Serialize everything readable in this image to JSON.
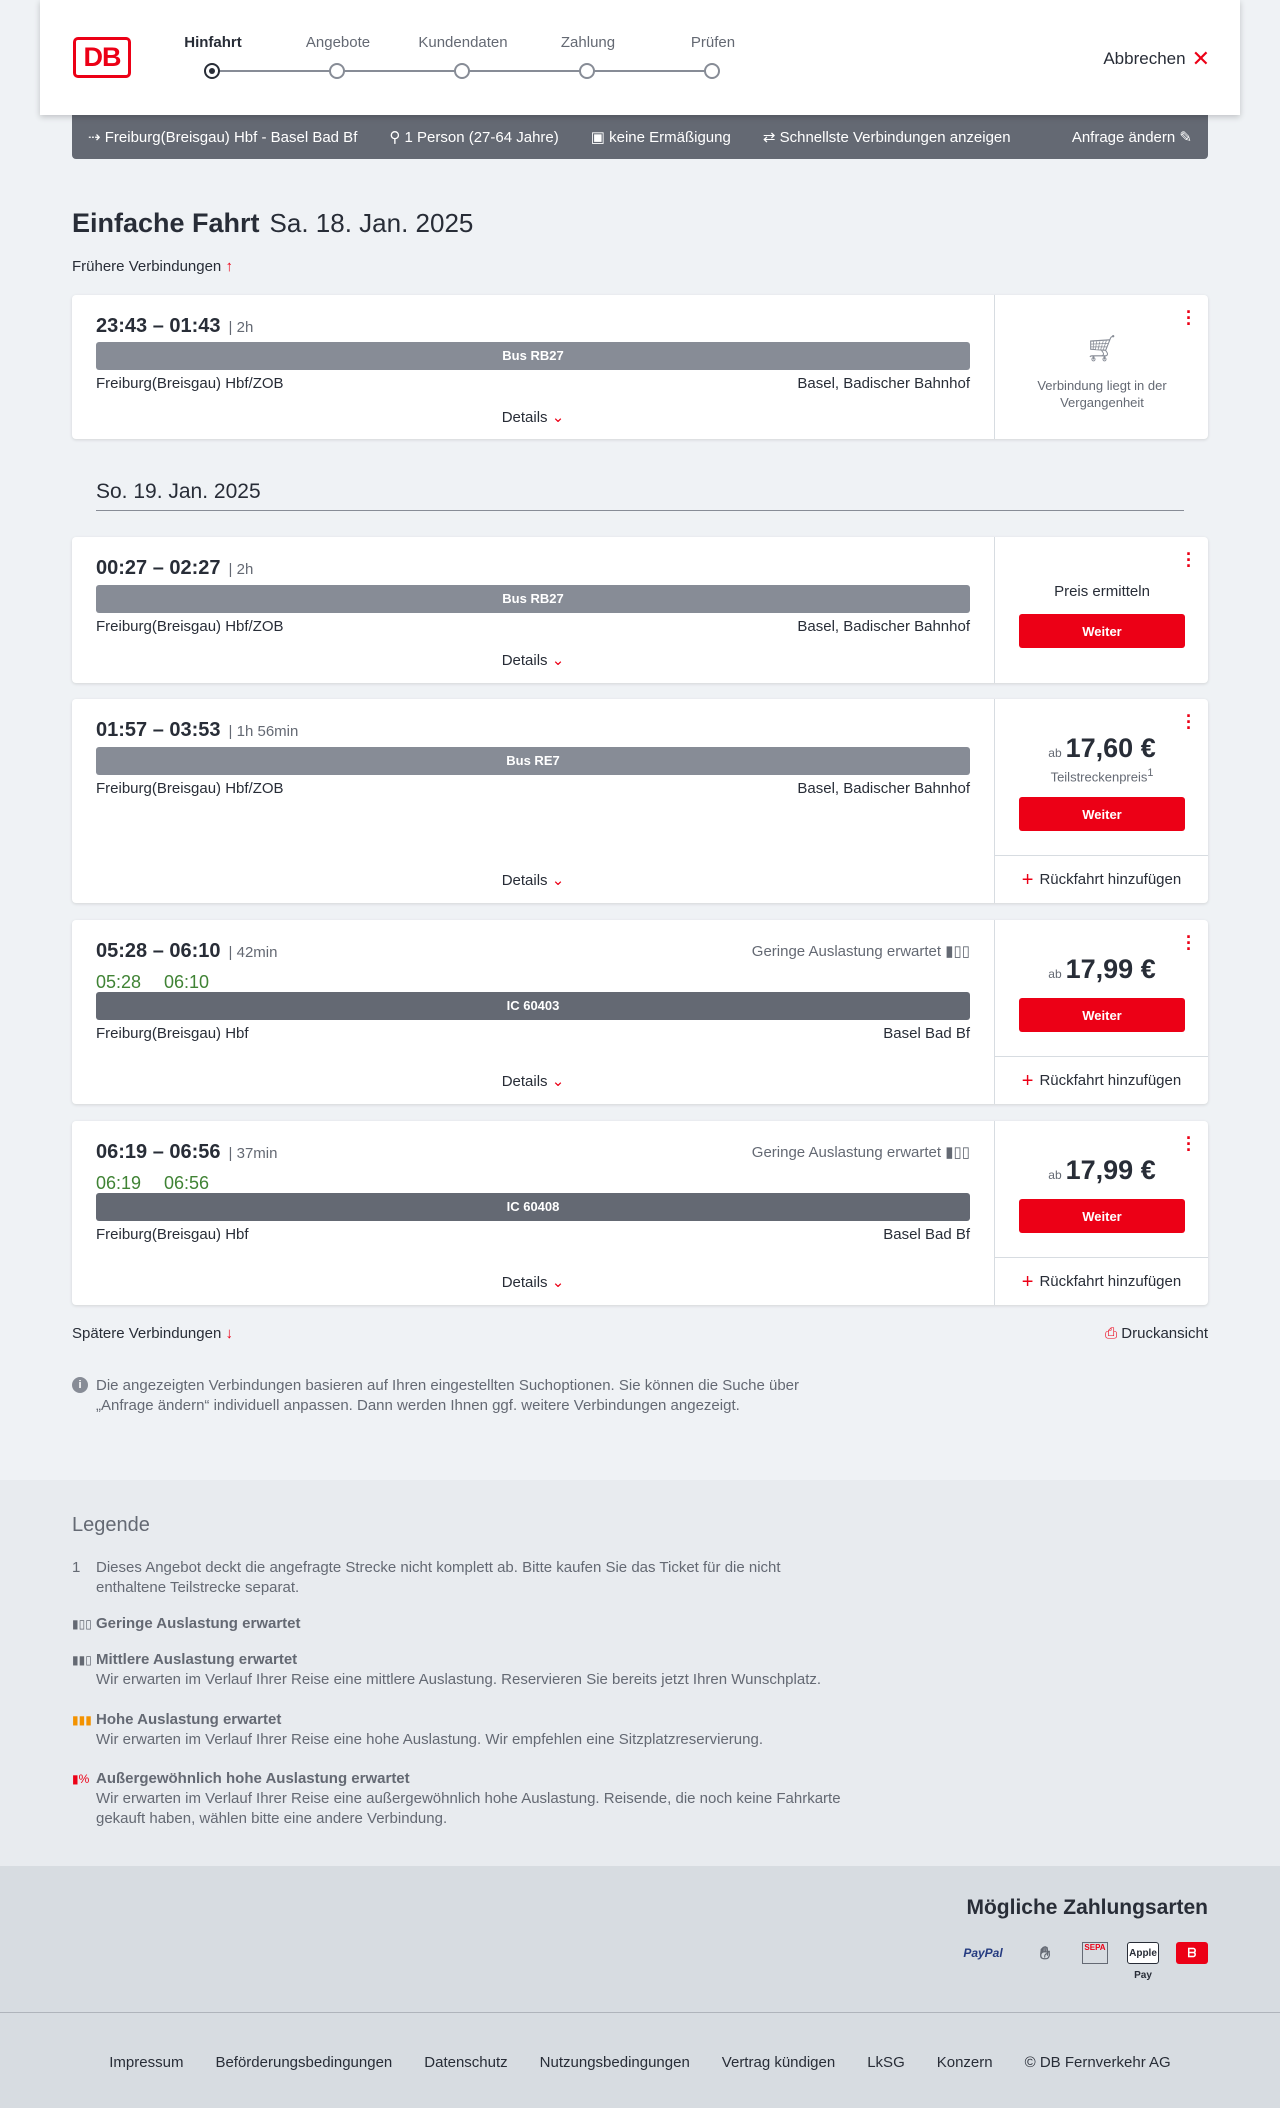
{
  "header": {
    "logo": "DB",
    "steps": [
      "Hinfahrt",
      "Angebote",
      "Kundendaten",
      "Zahlung",
      "Prüfen"
    ],
    "active_step": 0,
    "cancel": "Abbrechen"
  },
  "search": {
    "route": "Freiburg(Breisgau) Hbf - Basel Bad Bf",
    "passengers": "1 Person (27-64 Jahre)",
    "discount": "keine Ermäßigung",
    "option": "Schnellste Verbindungen anzeigen",
    "change": "Anfrage ändern"
  },
  "title": {
    "main": "Einfache Fahrt",
    "date": "Sa. 18. Jan. 2025",
    "earlier": "Frühere Verbindungen",
    "later": "Spätere Verbindungen",
    "print": "Druckansicht",
    "date2": "So. 19. Jan. 2025"
  },
  "connections": [
    {
      "times": "23:43 – 01:43",
      "duration": "2h",
      "train": "Bus RB27",
      "from": "Freiburg(Breisgau) Hbf/ZOB",
      "to": "Basel, Badischer Bahnhof",
      "details": "Details",
      "status": "Verbindung liegt in der Vergangenheit"
    },
    {
      "times": "00:27 – 02:27",
      "duration": "2h",
      "train": "Bus RB27",
      "from": "Freiburg(Breisgau) Hbf/ZOB",
      "to": "Basel, Badischer Bahnhof",
      "details": "Details",
      "price_label": "Preis ermitteln",
      "button": "Weiter"
    },
    {
      "times": "01:57 – 03:53",
      "duration": "1h 56min",
      "train": "Bus RE7",
      "from": "Freiburg(Breisgau) Hbf/ZOB",
      "to": "Basel, Badischer Bahnhof",
      "details": "Details",
      "ab": "ab",
      "price": "17,60 €",
      "price_note": "Teilstreckenpreis",
      "footnote": "1",
      "button": "Weiter",
      "return": "Rückfahrt hinzufügen"
    },
    {
      "times": "05:28 – 06:10",
      "duration": "42min",
      "rt_dep": "05:28",
      "rt_arr": "06:10",
      "occupancy": "Geringe Auslastung erwartet",
      "train": "IC 60403",
      "from": "Freiburg(Breisgau) Hbf",
      "to": "Basel Bad Bf",
      "details": "Details",
      "ab": "ab",
      "price": "17,99 €",
      "button": "Weiter",
      "return": "Rückfahrt hinzufügen"
    },
    {
      "times": "06:19 – 06:56",
      "duration": "37min",
      "rt_dep": "06:19",
      "rt_arr": "06:56",
      "occupancy": "Geringe Auslastung erwartet",
      "train": "IC 60408",
      "from": "Freiburg(Breisgau) Hbf",
      "to": "Basel Bad Bf",
      "details": "Details",
      "ab": "ab",
      "price": "17,99 €",
      "button": "Weiter",
      "return": "Rückfahrt hinzufügen"
    }
  ],
  "info": "Die angezeigten Verbindungen basieren auf Ihren eingestellten Suchoptionen. Sie können die Suche über „Anfrage ändern“ individuell anpassen. Dann werden Ihnen ggf. weitere Verbindungen angezeigt.",
  "legend": {
    "title": "Legende",
    "note_num": "1",
    "note": "Dieses Angebot deckt die angefragte Strecke nicht komplett ab. Bitte kaufen Sie das Ticket für die nicht enthaltene Teilstrecke separat.",
    "items": [
      {
        "title": "Geringe Auslastung erwartet",
        "text": ""
      },
      {
        "title": "Mittlere Auslastung erwartet",
        "text": "Wir erwarten im Verlauf Ihrer Reise eine mittlere Auslastung. Reservieren Sie bereits jetzt Ihren Wunschplatz."
      },
      {
        "title": "Hohe Auslastung erwartet",
        "text": "Wir erwarten im Verlauf Ihrer Reise eine hohe Auslastung. Wir empfehlen eine Sitzplatzreservierung."
      },
      {
        "title": "Außergewöhnlich hohe Auslastung erwartet",
        "text": "Wir erwarten im Verlauf Ihrer Reise eine außergewöhnlich hohe Auslastung. Reisende, die noch keine Fahrkarte gekauft haben, wählen bitte eine andere Verbindung."
      }
    ]
  },
  "payment": {
    "title": "Mögliche Zahlungsarten",
    "methods": [
      "PayPal",
      "Kreditkarte",
      "SEPA",
      "Apple Pay",
      "DB"
    ]
  },
  "footer": [
    "Impressum",
    "Beförderungsbedingungen",
    "Datenschutz",
    "Nutzungsbedingungen",
    "Vertrag kündigen",
    "LkSG",
    "Konzern",
    "© DB Fernverkehr AG"
  ],
  "colors": {
    "accent": "#ec0016",
    "realtime": "#408335",
    "bar": "#646973"
  }
}
